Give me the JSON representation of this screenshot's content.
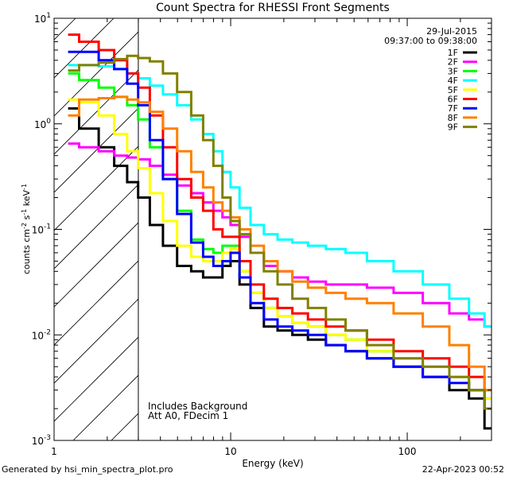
{
  "chart_data": {
    "type": "line",
    "title": "Count Spectra for RHESSI Front Segments",
    "xlabel": "Energy (keV)",
    "ylabel_parts": [
      "counts cm",
      "-2",
      " s",
      "-1",
      " keV",
      "-1"
    ],
    "xscale": "log",
    "yscale": "log",
    "xlim": [
      1,
      300
    ],
    "ylim": [
      0.001,
      10
    ],
    "x_ticks": [
      {
        "value": 1,
        "label": "1"
      },
      {
        "value": 10,
        "label": "10"
      },
      {
        "value": 100,
        "label": "100"
      }
    ],
    "y_ticks": [
      {
        "value": 0.001,
        "base": "10",
        "exp": "-3"
      },
      {
        "value": 0.01,
        "base": "10",
        "exp": "-2"
      },
      {
        "value": 0.1,
        "base": "10",
        "exp": "-1"
      },
      {
        "value": 1,
        "base": "10",
        "exp": "0"
      },
      {
        "value": 10,
        "base": "10",
        "exp": "1"
      }
    ],
    "header_date": "29-Jul-2015",
    "header_time": "09:37:00 to 09:38:00",
    "notes": [
      "Includes Background",
      "Att A0, FDecim 1"
    ],
    "hatched_region": {
      "x_from": 1,
      "x_to": 3
    },
    "series": [
      {
        "name": "1F",
        "color": "#000000",
        "x": [
          1.2,
          1.6,
          2.0,
          2.4,
          2.8,
          3.2,
          3.8,
          4.5,
          5.5,
          6.5,
          7.5,
          8.5,
          9.5,
          10.5,
          12,
          14,
          17,
          20,
          25,
          30,
          40,
          50,
          70,
          100,
          150,
          200,
          250,
          300
        ],
        "y": [
          1.4,
          0.9,
          0.6,
          0.4,
          0.28,
          0.2,
          0.11,
          0.07,
          0.045,
          0.04,
          0.035,
          0.035,
          0.045,
          0.05,
          0.03,
          0.018,
          0.012,
          0.011,
          0.01,
          0.009,
          0.008,
          0.007,
          0.006,
          0.005,
          0.004,
          0.003,
          0.0025,
          0.0013
        ]
      },
      {
        "name": "2F",
        "color": "#ff00ff",
        "x": [
          1.2,
          1.6,
          2.0,
          2.4,
          2.8,
          3.2,
          3.8,
          4.5,
          5.5,
          6.5,
          7.5,
          8.5,
          9.5,
          10.5,
          12,
          14,
          17,
          20,
          25,
          30,
          40,
          50,
          70,
          100,
          150,
          200,
          250,
          300
        ],
        "y": [
          0.65,
          0.6,
          0.55,
          0.5,
          0.48,
          0.46,
          0.4,
          0.33,
          0.26,
          0.22,
          0.18,
          0.15,
          0.13,
          0.11,
          0.085,
          0.06,
          0.045,
          0.04,
          0.035,
          0.032,
          0.03,
          0.03,
          0.028,
          0.025,
          0.02,
          0.016,
          0.014,
          0.012
        ]
      },
      {
        "name": "3F",
        "color": "#00ff00",
        "x": [
          1.2,
          1.6,
          2.0,
          2.4,
          2.8,
          3.2,
          3.8,
          4.5,
          5.5,
          6.5,
          7.5,
          8.5,
          9.5,
          10.5,
          12,
          14,
          17,
          20,
          25,
          30,
          40,
          50,
          70,
          100,
          150,
          200,
          250,
          300
        ],
        "y": [
          3.0,
          2.6,
          2.2,
          1.8,
          1.5,
          1.1,
          0.6,
          0.3,
          0.15,
          0.08,
          0.065,
          0.06,
          0.07,
          0.07,
          0.04,
          0.025,
          0.018,
          0.015,
          0.013,
          0.012,
          0.01,
          0.009,
          0.007,
          0.006,
          0.005,
          0.004,
          0.003,
          0.0025
        ]
      },
      {
        "name": "4F",
        "color": "#00ffff",
        "x": [
          1.2,
          1.6,
          2.0,
          2.4,
          2.8,
          3.2,
          3.8,
          4.5,
          5.5,
          6.5,
          7.5,
          8.5,
          9.5,
          10.5,
          12,
          14,
          17,
          20,
          25,
          30,
          40,
          50,
          70,
          100,
          150,
          200,
          250,
          300
        ],
        "y": [
          3.6,
          3.6,
          3.5,
          3.3,
          3.0,
          2.7,
          2.3,
          1.9,
          1.5,
          1.1,
          0.8,
          0.55,
          0.35,
          0.25,
          0.16,
          0.11,
          0.09,
          0.08,
          0.075,
          0.07,
          0.065,
          0.06,
          0.05,
          0.04,
          0.03,
          0.022,
          0.016,
          0.012
        ]
      },
      {
        "name": "5F",
        "color": "#ffff00",
        "x": [
          1.2,
          1.6,
          2.0,
          2.4,
          2.8,
          3.2,
          3.8,
          4.5,
          5.5,
          6.5,
          7.5,
          8.5,
          9.5,
          10.5,
          12,
          14,
          17,
          20,
          25,
          30,
          40,
          50,
          70,
          100,
          150,
          200,
          250,
          300
        ],
        "y": [
          1.7,
          1.6,
          1.2,
          0.8,
          0.55,
          0.38,
          0.22,
          0.12,
          0.07,
          0.055,
          0.05,
          0.05,
          0.06,
          0.065,
          0.04,
          0.025,
          0.018,
          0.015,
          0.013,
          0.012,
          0.01,
          0.009,
          0.007,
          0.006,
          0.005,
          0.004,
          0.003,
          0.0025
        ]
      },
      {
        "name": "6F",
        "color": "#ff0000",
        "x": [
          1.2,
          1.6,
          2.0,
          2.4,
          2.8,
          3.2,
          3.8,
          4.5,
          5.5,
          6.5,
          7.5,
          8.5,
          9.5,
          10.5,
          12,
          14,
          17,
          20,
          25,
          30,
          40,
          50,
          70,
          100,
          150,
          200,
          250,
          300
        ],
        "y": [
          7.0,
          6.0,
          5.0,
          4.0,
          3.0,
          2.2,
          1.2,
          0.6,
          0.3,
          0.2,
          0.15,
          0.1,
          0.085,
          0.085,
          0.05,
          0.03,
          0.022,
          0.018,
          0.016,
          0.014,
          0.012,
          0.011,
          0.009,
          0.007,
          0.006,
          0.005,
          0.004,
          0.003
        ]
      },
      {
        "name": "7F",
        "color": "#0000ff",
        "x": [
          1.2,
          1.6,
          2.0,
          2.4,
          2.8,
          3.2,
          3.8,
          4.5,
          5.5,
          6.5,
          7.5,
          8.5,
          9.5,
          10.5,
          12,
          14,
          17,
          20,
          25,
          30,
          40,
          50,
          70,
          100,
          150,
          200,
          250,
          300
        ],
        "y": [
          4.8,
          4.8,
          4.0,
          3.3,
          2.4,
          1.5,
          0.7,
          0.3,
          0.14,
          0.075,
          0.055,
          0.045,
          0.05,
          0.06,
          0.035,
          0.02,
          0.014,
          0.012,
          0.011,
          0.01,
          0.008,
          0.007,
          0.006,
          0.005,
          0.004,
          0.0035,
          0.003,
          0.002
        ]
      },
      {
        "name": "8F",
        "color": "#ff8000",
        "x": [
          1.2,
          1.6,
          2.0,
          2.4,
          2.8,
          3.2,
          3.8,
          4.5,
          5.5,
          6.5,
          7.5,
          8.5,
          9.5,
          10.5,
          12,
          14,
          17,
          20,
          25,
          30,
          40,
          50,
          70,
          100,
          150,
          200,
          250,
          300
        ],
        "y": [
          1.2,
          1.7,
          1.75,
          1.8,
          1.7,
          1.6,
          1.3,
          0.9,
          0.55,
          0.35,
          0.25,
          0.18,
          0.15,
          0.13,
          0.1,
          0.07,
          0.05,
          0.04,
          0.032,
          0.028,
          0.025,
          0.022,
          0.02,
          0.016,
          0.012,
          0.008,
          0.005,
          0.003
        ]
      },
      {
        "name": "9F",
        "color": "#808000",
        "x": [
          1.2,
          1.6,
          2.0,
          2.4,
          2.8,
          3.2,
          3.8,
          4.5,
          5.5,
          6.5,
          7.5,
          8.5,
          9.5,
          10.5,
          12,
          14,
          17,
          20,
          25,
          30,
          40,
          50,
          70,
          100,
          150,
          200,
          250,
          300
        ],
        "y": [
          3.2,
          3.6,
          3.8,
          4.1,
          4.4,
          4.2,
          3.9,
          3.0,
          2.0,
          1.2,
          0.7,
          0.4,
          0.2,
          0.12,
          0.09,
          0.06,
          0.04,
          0.03,
          0.022,
          0.018,
          0.014,
          0.011,
          0.008,
          0.006,
          0.005,
          0.004,
          0.003,
          0.002
        ]
      }
    ]
  },
  "footer": {
    "generated_by": "Generated by hsi_min_spectra_plot.pro",
    "timestamp": "22-Apr-2023 00:52"
  }
}
